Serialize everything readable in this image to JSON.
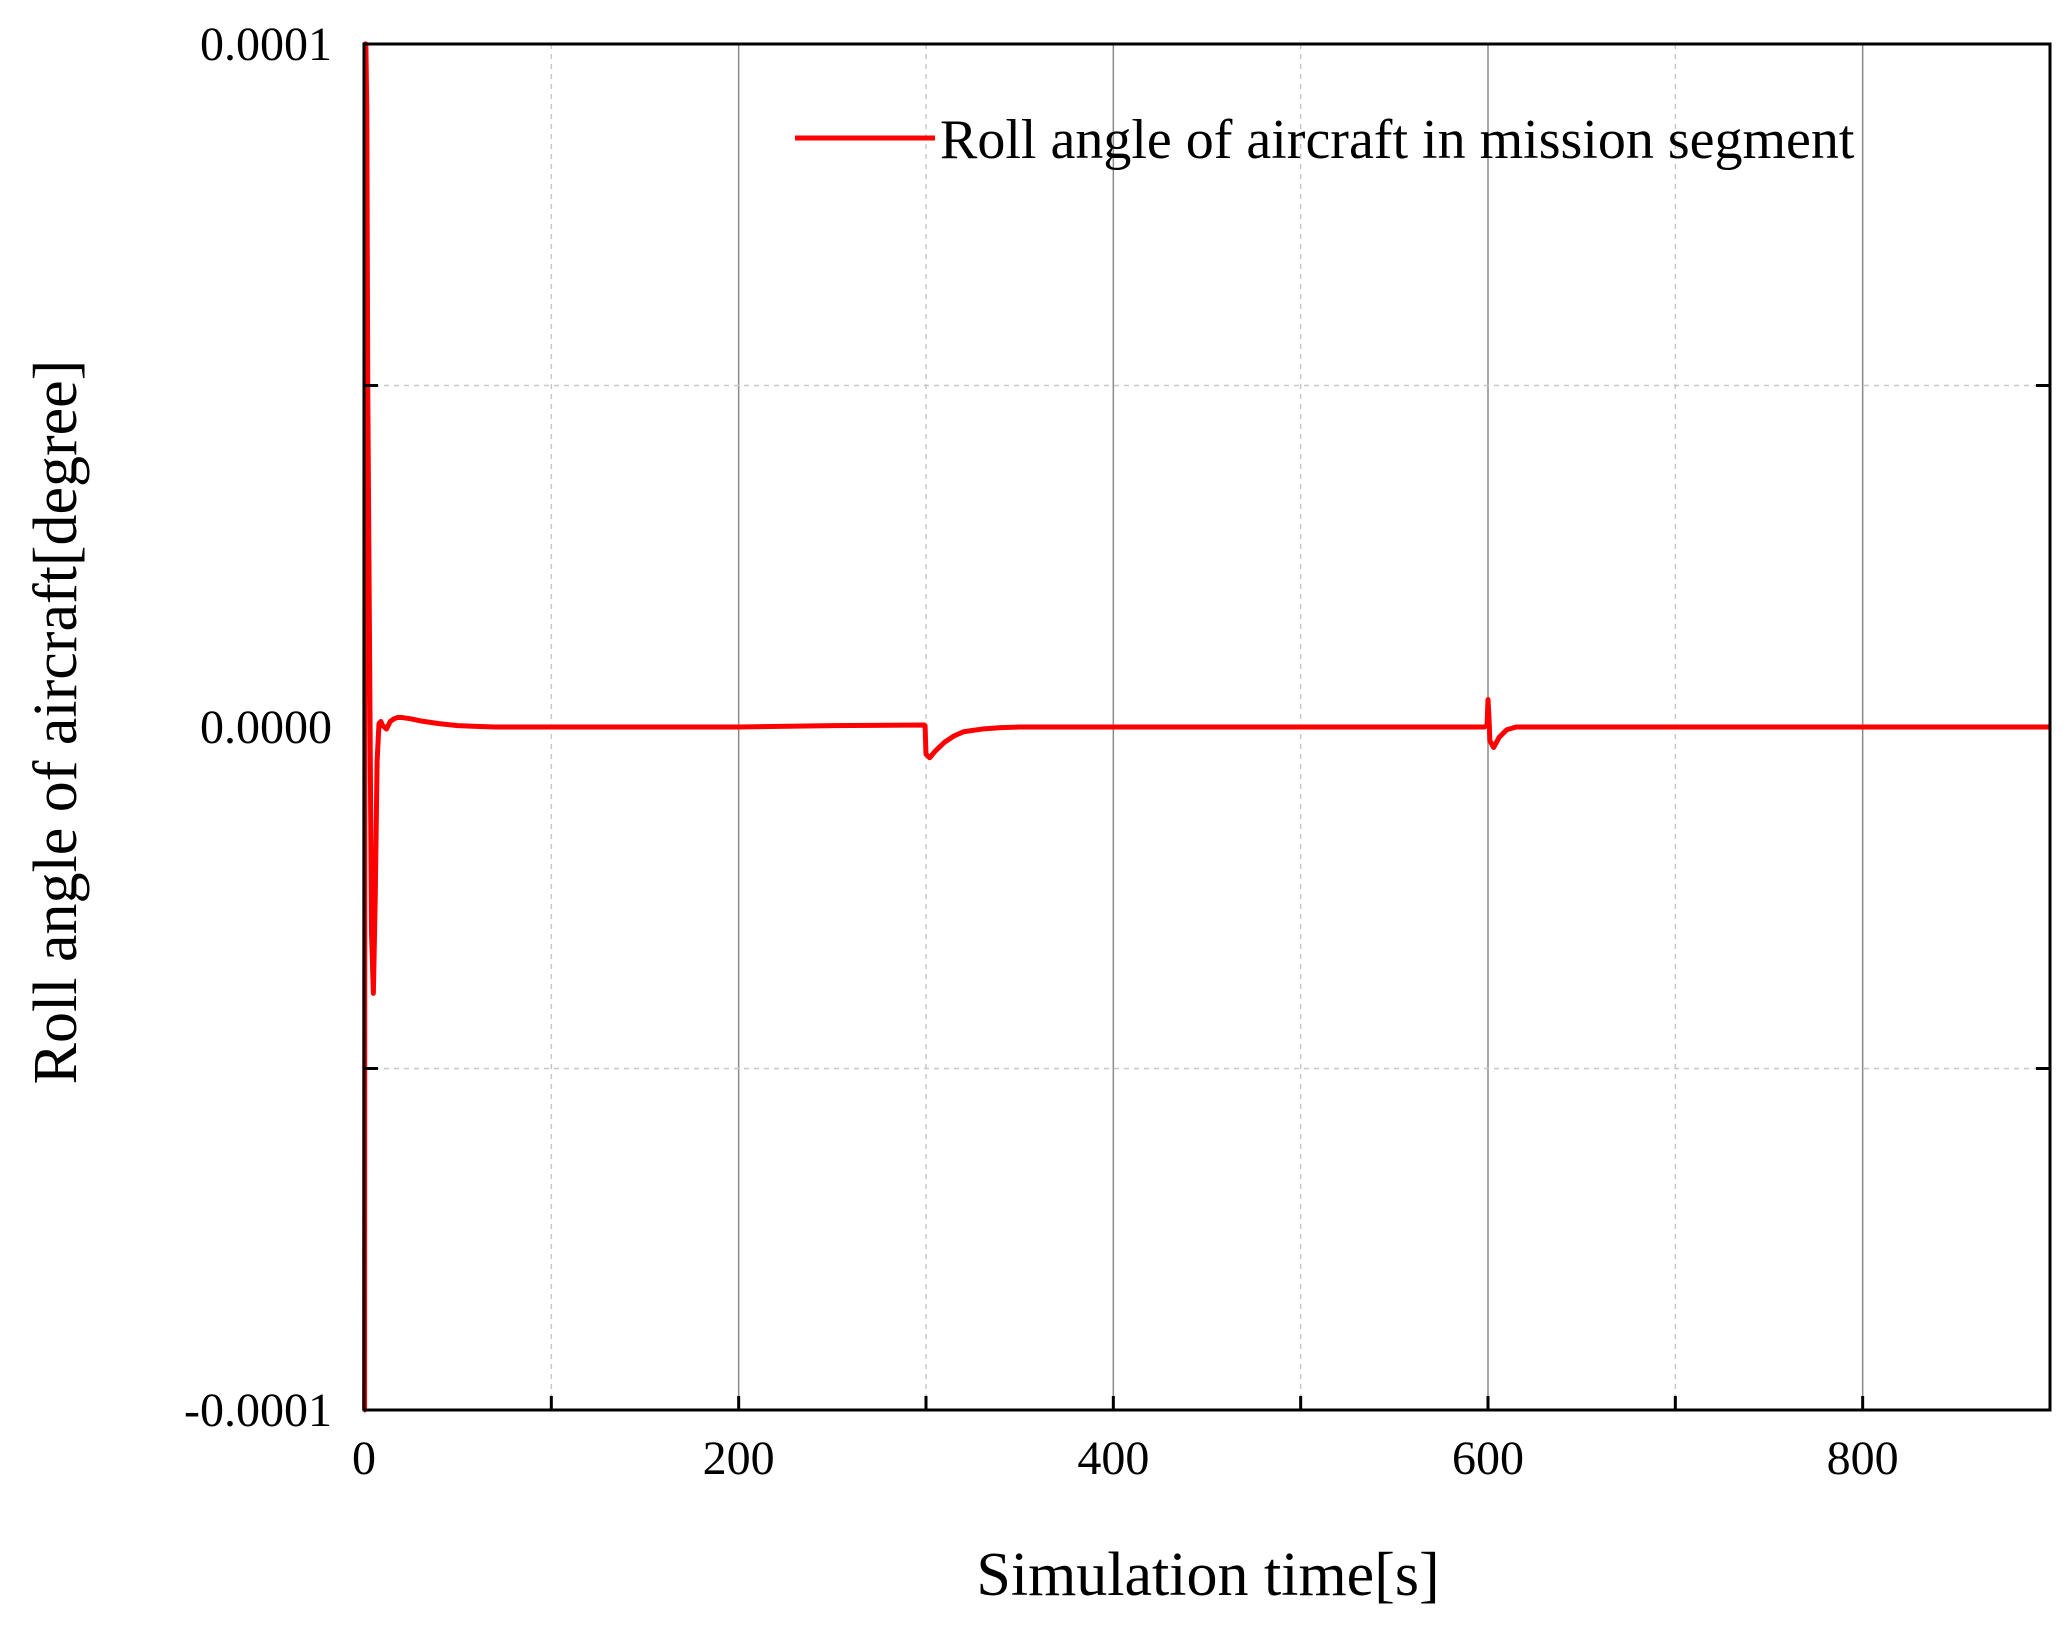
{
  "chart_data": {
    "type": "line",
    "title": "",
    "xlabel": "Simulation time[s]",
    "ylabel": "Roll angle of aircraft[degree]",
    "xlim": [
      0,
      900
    ],
    "ylim": [
      -0.0001,
      0.0001
    ],
    "x_ticks": [
      0,
      200,
      400,
      600,
      800
    ],
    "x_tick_labels": [
      "0",
      "200",
      "400",
      "600",
      "800"
    ],
    "x_minor_ticks": [
      100,
      300,
      500,
      700
    ],
    "y_ticks": [
      -0.0001,
      0,
      0.0001
    ],
    "y_tick_labels": [
      "-0.0001",
      "0.0000",
      "0.0001"
    ],
    "y_minor_ticks": [
      -5e-05,
      5e-05
    ],
    "grid": true,
    "legend": "top-right",
    "series": [
      {
        "name": "Roll angle of aircraft in mission segment",
        "color": "#ff0000",
        "x": [
          0,
          0.3,
          0.6,
          1.0,
          1.5,
          2.0,
          3.0,
          4.0,
          5.0,
          6.0,
          7.0,
          8.0,
          9.0,
          10,
          12,
          14,
          16,
          18,
          20,
          25,
          30,
          40,
          50,
          60,
          70,
          80,
          100,
          150,
          200,
          250,
          299,
          299.5,
          300,
          302,
          305,
          310,
          315,
          320,
          330,
          340,
          350,
          360,
          400,
          500,
          598,
          599.5,
          600,
          600.5,
          601,
          603,
          606,
          610,
          615,
          650,
          700,
          800,
          900
        ],
        "y": [
          -0.0001,
          -0.0001,
          0.0001,
          0.0001,
          9e-05,
          5e-05,
          1e-05,
          -3e-05,
          -3.9e-05,
          -2.5e-05,
          -5e-06,
          5e-07,
          8e-07,
          2e-07,
          -3e-07,
          8e-07,
          1.2e-06,
          1.4e-06,
          1.4e-06,
          1.2e-06,
          9e-07,
          5e-07,
          2e-07,
          1e-07,
          0.0,
          0.0,
          0.0,
          0.0,
          0.0,
          2e-07,
          3e-07,
          2e-07,
          -4e-06,
          -4.5e-06,
          -3.5e-06,
          -2.2e-06,
          -1.3e-06,
          -7e-07,
          -3e-07,
          -1e-07,
          0.0,
          0.0,
          0.0,
          0.0,
          0.0,
          2e-07,
          4e-06,
          1.5e-06,
          -2e-06,
          -3e-06,
          -1.5e-06,
          -4e-07,
          0.0,
          0.0,
          0.0,
          0.0,
          0.0
        ]
      }
    ]
  }
}
